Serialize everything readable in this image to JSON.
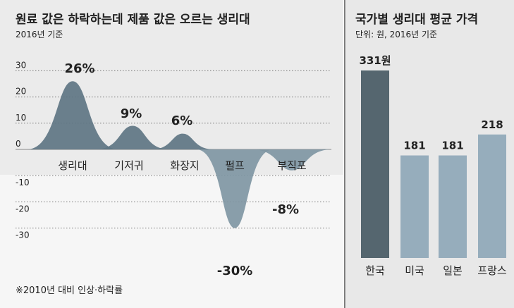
{
  "left_chart": {
    "title": "원료 값은 하락하는데 제품 값은 오르는 생리대",
    "subtitle": "2016년 기준",
    "footnote": "※2010년 대비 인상·하락률",
    "colors": {
      "up_fill": "#5e7583",
      "down_fill": "#7f96a3",
      "panel_bg": "#ebebeb"
    }
  },
  "right_chart": {
    "title": "국가별 생리대 평균 가격",
    "subtitle": "단위: 원, 2016년 기준",
    "colors": {
      "highlight": "#55666f",
      "other": "#96adbc",
      "panel_bg": "#e8e8e8"
    }
  },
  "chart_data": [
    {
      "type": "area",
      "categories": [
        "생리대",
        "기저귀",
        "화장지",
        "펄프",
        "부직포"
      ],
      "values": [
        26,
        9,
        6,
        -30,
        -8
      ],
      "value_labels": [
        "26%",
        "9%",
        "6%",
        "-30%",
        "-8%"
      ],
      "y_ticks": [
        30,
        20,
        10,
        0,
        -10,
        -20,
        -30
      ],
      "y_tick_labels": [
        "30",
        "20",
        "10",
        "0",
        "-10",
        "-20",
        "-30"
      ],
      "ylim": [
        -35,
        35
      ],
      "grid": true
    },
    {
      "type": "bar",
      "categories": [
        "한국",
        "미국",
        "일본",
        "프랑스"
      ],
      "values": [
        331,
        181,
        181,
        218
      ],
      "value_labels": [
        "331원",
        "181",
        "181",
        "218"
      ],
      "ylim": [
        0,
        331
      ]
    }
  ]
}
